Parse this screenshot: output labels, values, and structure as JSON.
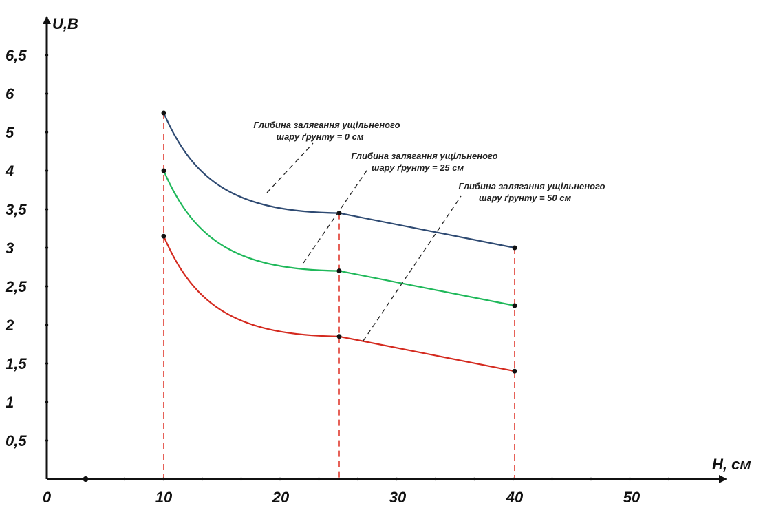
{
  "chart_data": {
    "type": "line",
    "xlabel": "H, см",
    "ylabel": "U,B",
    "x_ticks": [
      "0",
      "10",
      "20",
      "30",
      "40",
      "50"
    ],
    "y_ticks": [
      "0,5",
      "1",
      "1,5",
      "2",
      "2,5",
      "3",
      "3,5",
      "4",
      "5",
      "6",
      "6,5"
    ],
    "series": [
      {
        "color": "#2e4a72",
        "points": [
          [
            10,
            5.5
          ],
          [
            25,
            3.45
          ],
          [
            40,
            3.0
          ]
        ],
        "annotation": [
          "Глибина залягання ущільненого",
          "шару ґрунту =  0 см"
        ]
      },
      {
        "color": "#1fb85a",
        "points": [
          [
            10,
            4.0
          ],
          [
            25,
            2.7
          ],
          [
            40,
            2.25
          ]
        ],
        "annotation": [
          "Глибина залягання ущільненого",
          "шару ґрунту =  25 см"
        ]
      },
      {
        "color": "#d42a1f",
        "points": [
          [
            10,
            3.15
          ],
          [
            25,
            1.85
          ],
          [
            40,
            1.4
          ]
        ],
        "annotation": [
          "Глибина залягання ущільненого",
          "шару ґрунту =  50 см"
        ]
      }
    ],
    "reference_lines_x": [
      10,
      25,
      40
    ],
    "reference_line_color": "#e03a2f",
    "axis_color": "#111111",
    "grid": false,
    "legend": "none"
  }
}
